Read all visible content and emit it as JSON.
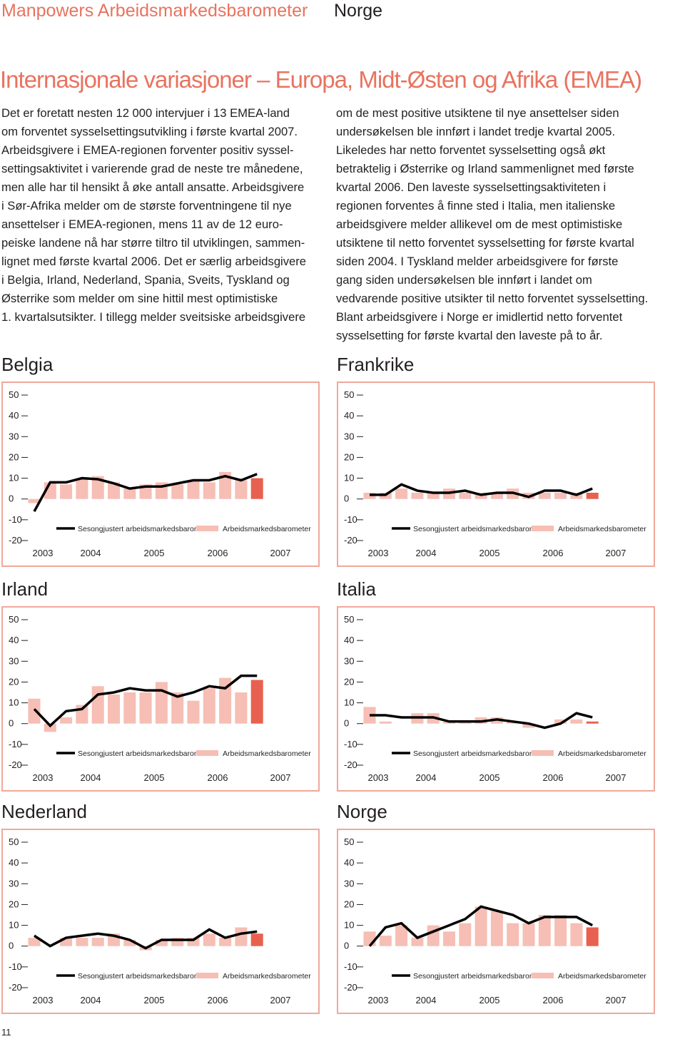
{
  "header": {
    "title": "Manpowers Arbeidsmarkedsbarometer",
    "country": "Norge"
  },
  "heading": "Internasjonale variasjoner – Europa, Midt-Østen og Afrika (EMEA)",
  "columns": [
    [
      "Det er foretatt nesten 12 000 intervjuer i 13 EMEA-land",
      "om forventet sysselsettingsutvikling i første kvartal 2007.",
      "Arbeidsgivere i EMEA-regionen forventer positiv syssel-",
      "settingsaktivitet i varierende grad de neste tre månedene,",
      "men alle har til hensikt å øke antall ansatte. Arbeidsgivere",
      "i Sør-Afrika melder om de største forventningene til nye",
      "ansettelser i EMEA-regionen, mens 11 av de 12 euro-",
      "peiske landene nå har større tiltro til utviklingen, sammen-",
      "lignet med første kvartal 2006. Det er særlig arbeidsgivere",
      "i Belgia, Irland, Nederland, Spania, Sveits, Tyskland og",
      "Østerrike som melder om sine hittil mest optimistiske",
      "1. kvartalsutsikter. I tillegg melder sveitsiske arbeidsgivere"
    ],
    [
      "om de mest positive utsiktene til nye ansettelser siden",
      "undersøkelsen ble innført i landet tredje kvartal 2005.",
      "Likeledes har netto forventet sysselsetting også økt",
      "betraktelig i Østerrike og Irland sammenlignet med første",
      "kvartal 2006. Den laveste sysselsettingsaktiviteten i",
      "regionen forventes å finne sted i Italia, men italienske",
      "arbeidsgivere melder allikevel om de mest optimistiske",
      "utsiktene til netto forventet sysselsetting for første kvartal",
      "siden 2004. I Tyskland melder arbeidsgivere for første",
      "gang siden undersøkelsen ble innført i landet om",
      "vedvarende positive utsikter til netto forventet sysselsetting.",
      "Blant arbeidsgivere i Norge er imidlertid netto forventet",
      "sysselsetting for første kvartal den laveste på to år."
    ]
  ],
  "chart_data": [
    {
      "type": "bar_line",
      "title": "Belgia",
      "ylim": [
        -20,
        50
      ],
      "yticks": [
        -20,
        -10,
        0,
        10,
        20,
        30,
        40,
        50
      ],
      "x_labels": [
        "2003",
        "2004",
        "2005",
        "2006",
        "2007"
      ],
      "series": [
        {
          "name": "Sesongjustert arbeidsmarkedsbarometer",
          "type": "line",
          "color": "#000000",
          "values": [
            -6,
            8,
            8,
            10,
            9.5,
            7.5,
            5,
            6,
            6,
            7.5,
            9,
            9,
            11,
            9,
            12
          ]
        },
        {
          "name": "Arbeidsmarkedsbarometer",
          "type": "bar",
          "color": "#f6beb4",
          "highlight_color": "#e8604f",
          "values": [
            -2,
            8,
            7,
            10,
            11,
            8,
            5,
            7,
            8,
            7,
            9,
            8,
            13,
            9,
            10
          ]
        }
      ]
    },
    {
      "type": "bar_line",
      "title": "Frankrike",
      "ylim": [
        -20,
        50
      ],
      "yticks": [
        -20,
        -10,
        0,
        10,
        20,
        30,
        40,
        50
      ],
      "x_labels": [
        "2003",
        "2004",
        "2005",
        "2006",
        "2007"
      ],
      "series": [
        {
          "name": "Sesongjustert arbeidsmarkedsbarometer",
          "type": "line",
          "color": "#000000",
          "values": [
            2,
            2,
            7,
            4,
            3,
            3,
            4,
            2,
            3,
            3,
            1,
            4,
            4,
            2,
            5
          ]
        },
        {
          "name": "Arbeidsmarkedsbarometer",
          "type": "bar",
          "color": "#f6beb4",
          "highlight_color": "#e8604f",
          "values": [
            3,
            3,
            5,
            3,
            3,
            5,
            3,
            3,
            3,
            5,
            3,
            3,
            3,
            3,
            3
          ]
        }
      ]
    },
    {
      "type": "bar_line",
      "title": "Irland",
      "ylim": [
        -20,
        50
      ],
      "yticks": [
        -20,
        -10,
        0,
        10,
        20,
        30,
        40,
        50
      ],
      "x_labels": [
        "2003",
        "2004",
        "2005",
        "2006",
        "2007"
      ],
      "series": [
        {
          "name": "Sesongjustert arbeidsmarkedsbarometer",
          "type": "line",
          "color": "#000000",
          "values": [
            7,
            -1,
            6,
            7,
            14,
            15,
            17,
            16,
            16,
            13,
            15,
            18,
            17,
            23,
            23
          ]
        },
        {
          "name": "Arbeidsmarkedsbarometer",
          "type": "bar",
          "color": "#f6beb4",
          "highlight_color": "#e8604f",
          "values": [
            12,
            -4,
            3,
            9,
            18,
            14,
            15,
            15,
            20,
            15,
            11,
            17,
            22,
            15,
            21
          ]
        }
      ]
    },
    {
      "type": "bar_line",
      "title": "Italia",
      "ylim": [
        -20,
        50
      ],
      "yticks": [
        -20,
        -10,
        0,
        10,
        20,
        30,
        40,
        50
      ],
      "x_labels": [
        "2003",
        "2004",
        "2005",
        "2006",
        "2007"
      ],
      "series": [
        {
          "name": "Sesongjustert arbeidsmarkedsbarometer",
          "type": "line",
          "color": "#000000",
          "values": [
            4,
            4,
            3,
            3,
            3,
            1,
            1,
            1,
            2,
            1,
            0,
            -2,
            0,
            5,
            3
          ]
        },
        {
          "name": "Arbeidsmarkedsbarometer",
          "type": "bar",
          "color": "#f6beb4",
          "highlight_color": "#e8604f",
          "values": [
            8,
            1,
            0,
            5,
            5,
            1,
            1,
            3,
            3,
            1,
            -2,
            0,
            2,
            2,
            1
          ]
        }
      ]
    },
    {
      "type": "bar_line",
      "title": "Nederland",
      "ylim": [
        -20,
        50
      ],
      "yticks": [
        -20,
        -10,
        0,
        10,
        20,
        30,
        40,
        50
      ],
      "x_labels": [
        "2003",
        "2004",
        "2005",
        "2006",
        "2007"
      ],
      "series": [
        {
          "name": "Sesongjustert arbeidsmarkedsbarometer",
          "type": "line",
          "color": "#000000",
          "values": [
            5,
            0,
            4,
            5,
            6,
            5,
            3,
            -1,
            3,
            3,
            3,
            8,
            4,
            6,
            7
          ]
        },
        {
          "name": "Arbeidsmarkedsbarometer",
          "type": "bar",
          "color": "#f6beb4",
          "highlight_color": "#e8604f",
          "values": [
            4,
            0,
            4,
            4,
            4,
            6,
            3,
            -2,
            3,
            4,
            4,
            6,
            4,
            9,
            6
          ]
        }
      ]
    },
    {
      "type": "bar_line",
      "title": "Norge",
      "ylim": [
        -20,
        50
      ],
      "yticks": [
        -20,
        -10,
        0,
        10,
        20,
        30,
        40,
        50
      ],
      "x_labels": [
        "2003",
        "2004",
        "2005",
        "2006",
        "2007"
      ],
      "series": [
        {
          "name": "Sesongjustert arbeidsmarkedsbarometer",
          "type": "line",
          "color": "#000000",
          "values": [
            0,
            9,
            11,
            4,
            7,
            10,
            13,
            19,
            17,
            15,
            11,
            14,
            14,
            14,
            10
          ]
        },
        {
          "name": "Arbeidsmarkedsbarometer",
          "type": "bar",
          "color": "#f6beb4",
          "highlight_color": "#e8604f",
          "values": [
            7,
            5,
            10,
            4,
            10,
            7,
            11,
            19,
            17,
            11,
            11,
            15,
            15,
            11,
            9
          ]
        }
      ]
    }
  ],
  "page_number": "11"
}
